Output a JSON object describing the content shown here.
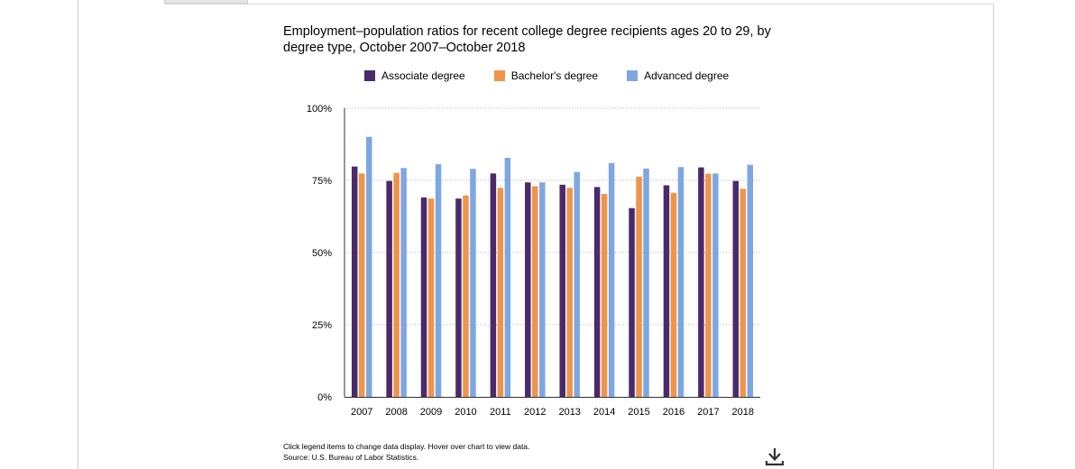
{
  "chart_data": {
    "type": "bar",
    "title": "Employment–population ratios for recent college degree recipients ages 20 to 29, by degree type, October 2007–October 2018",
    "categories": [
      "2007",
      "2008",
      "2009",
      "2010",
      "2011",
      "2012",
      "2013",
      "2014",
      "2015",
      "2016",
      "2017",
      "2018"
    ],
    "series": [
      {
        "name": "Associate degree",
        "color": "#4b2a6b",
        "values": [
          79.8,
          74.8,
          69.1,
          68.7,
          77.4,
          74.3,
          73.5,
          72.7,
          65.4,
          73.3,
          79.5,
          74.8
        ]
      },
      {
        "name": "Bachelor's degree",
        "color": "#f0944a",
        "values": [
          77.4,
          77.6,
          68.7,
          69.8,
          72.4,
          73.0,
          72.4,
          70.3,
          76.3,
          70.7,
          77.3,
          72.1
        ]
      },
      {
        "name": "Advanced degree",
        "color": "#7ea7e2",
        "values": [
          90.1,
          79.3,
          80.6,
          79.0,
          82.8,
          74.3,
          77.9,
          81.0,
          79.1,
          79.6,
          77.4,
          80.4
        ]
      }
    ],
    "ylim": [
      0,
      100
    ],
    "yticks": [
      "0%",
      "25%",
      "50%",
      "75%",
      "100%"
    ],
    "ytick_values": [
      0,
      25,
      50,
      75,
      100
    ],
    "grid": true,
    "legend_position": "top",
    "xlabel": "",
    "ylabel": ""
  },
  "notes": {
    "interaction": "Click legend items to change data display. Hover over chart to view data.",
    "source": "Source: U.S. Bureau of Labor Statistics."
  },
  "icons": {
    "download": "download-icon"
  }
}
